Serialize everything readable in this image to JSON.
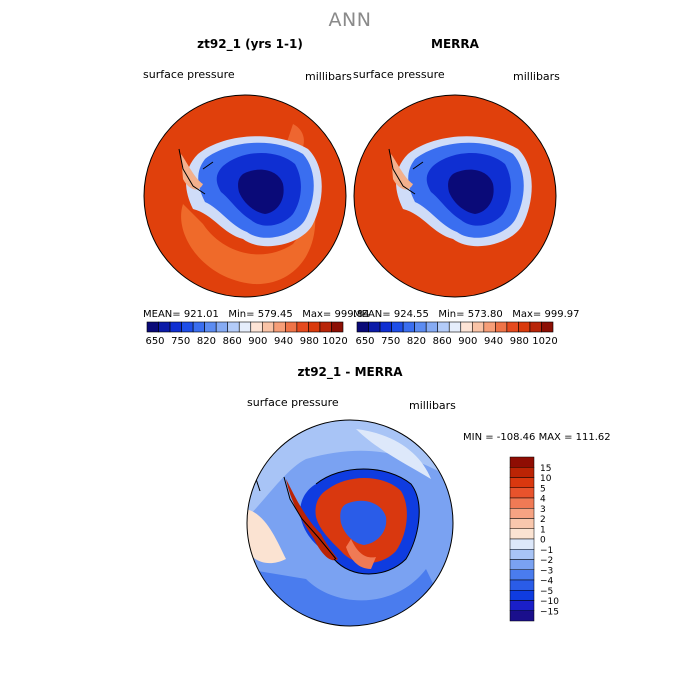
{
  "main_title": "ANN",
  "panels": [
    {
      "title": "zt92_1 (yrs 1-1)",
      "variable": "surface pressure",
      "units": "millibars",
      "stats": {
        "mean": "921.01",
        "min": "579.45",
        "max": "999.84"
      },
      "stats_label": {
        "mean": "MEAN=",
        "min": "Min=",
        "max": "Max="
      }
    },
    {
      "title": "MERRA",
      "variable": "surface pressure",
      "units": "millibars",
      "stats": {
        "mean": "924.55",
        "min": "573.80",
        "max": "999.97"
      },
      "stats_label": {
        "mean": "MEAN=",
        "min": "Min=",
        "max": "Max="
      }
    }
  ],
  "diff_panel": {
    "title": "zt92_1 - MERRA",
    "variable": "surface pressure",
    "units": "millibars",
    "stats_text": "MIN = -108.46  MAX = 111.62"
  },
  "colorbar_top": {
    "colors": [
      "#0a0a78",
      "#0a1aa8",
      "#0f2fd2",
      "#1e4ee8",
      "#3a6ef0",
      "#5c8cf2",
      "#86abf4",
      "#b3cbf8",
      "#e6eefc",
      "#fde4d6",
      "#fac3a6",
      "#f69e78",
      "#ef7448",
      "#e54a1e",
      "#d93a0c",
      "#b82508",
      "#8c0f04"
    ],
    "labels": [
      "650",
      "750",
      "820",
      "860",
      "900",
      "940",
      "980",
      "1020"
    ]
  },
  "colorbar_diff": {
    "colors": [
      "#1a0f8c",
      "#1a1fc8",
      "#0f3ce0",
      "#2a5ce8",
      "#4a7cee",
      "#7aa2f2",
      "#a8c4f6",
      "#dde8fa",
      "#fbe3d2",
      "#f9c7ad",
      "#f6a383",
      "#f07a55",
      "#e8532c",
      "#d9380f",
      "#bb2405",
      "#8f0d03"
    ],
    "labels": [
      "15",
      "10",
      "5",
      "4",
      "3",
      "2",
      "1",
      "0",
      "-1",
      "-2",
      "-3",
      "-4",
      "-5",
      "-10",
      "-15"
    ]
  }
}
